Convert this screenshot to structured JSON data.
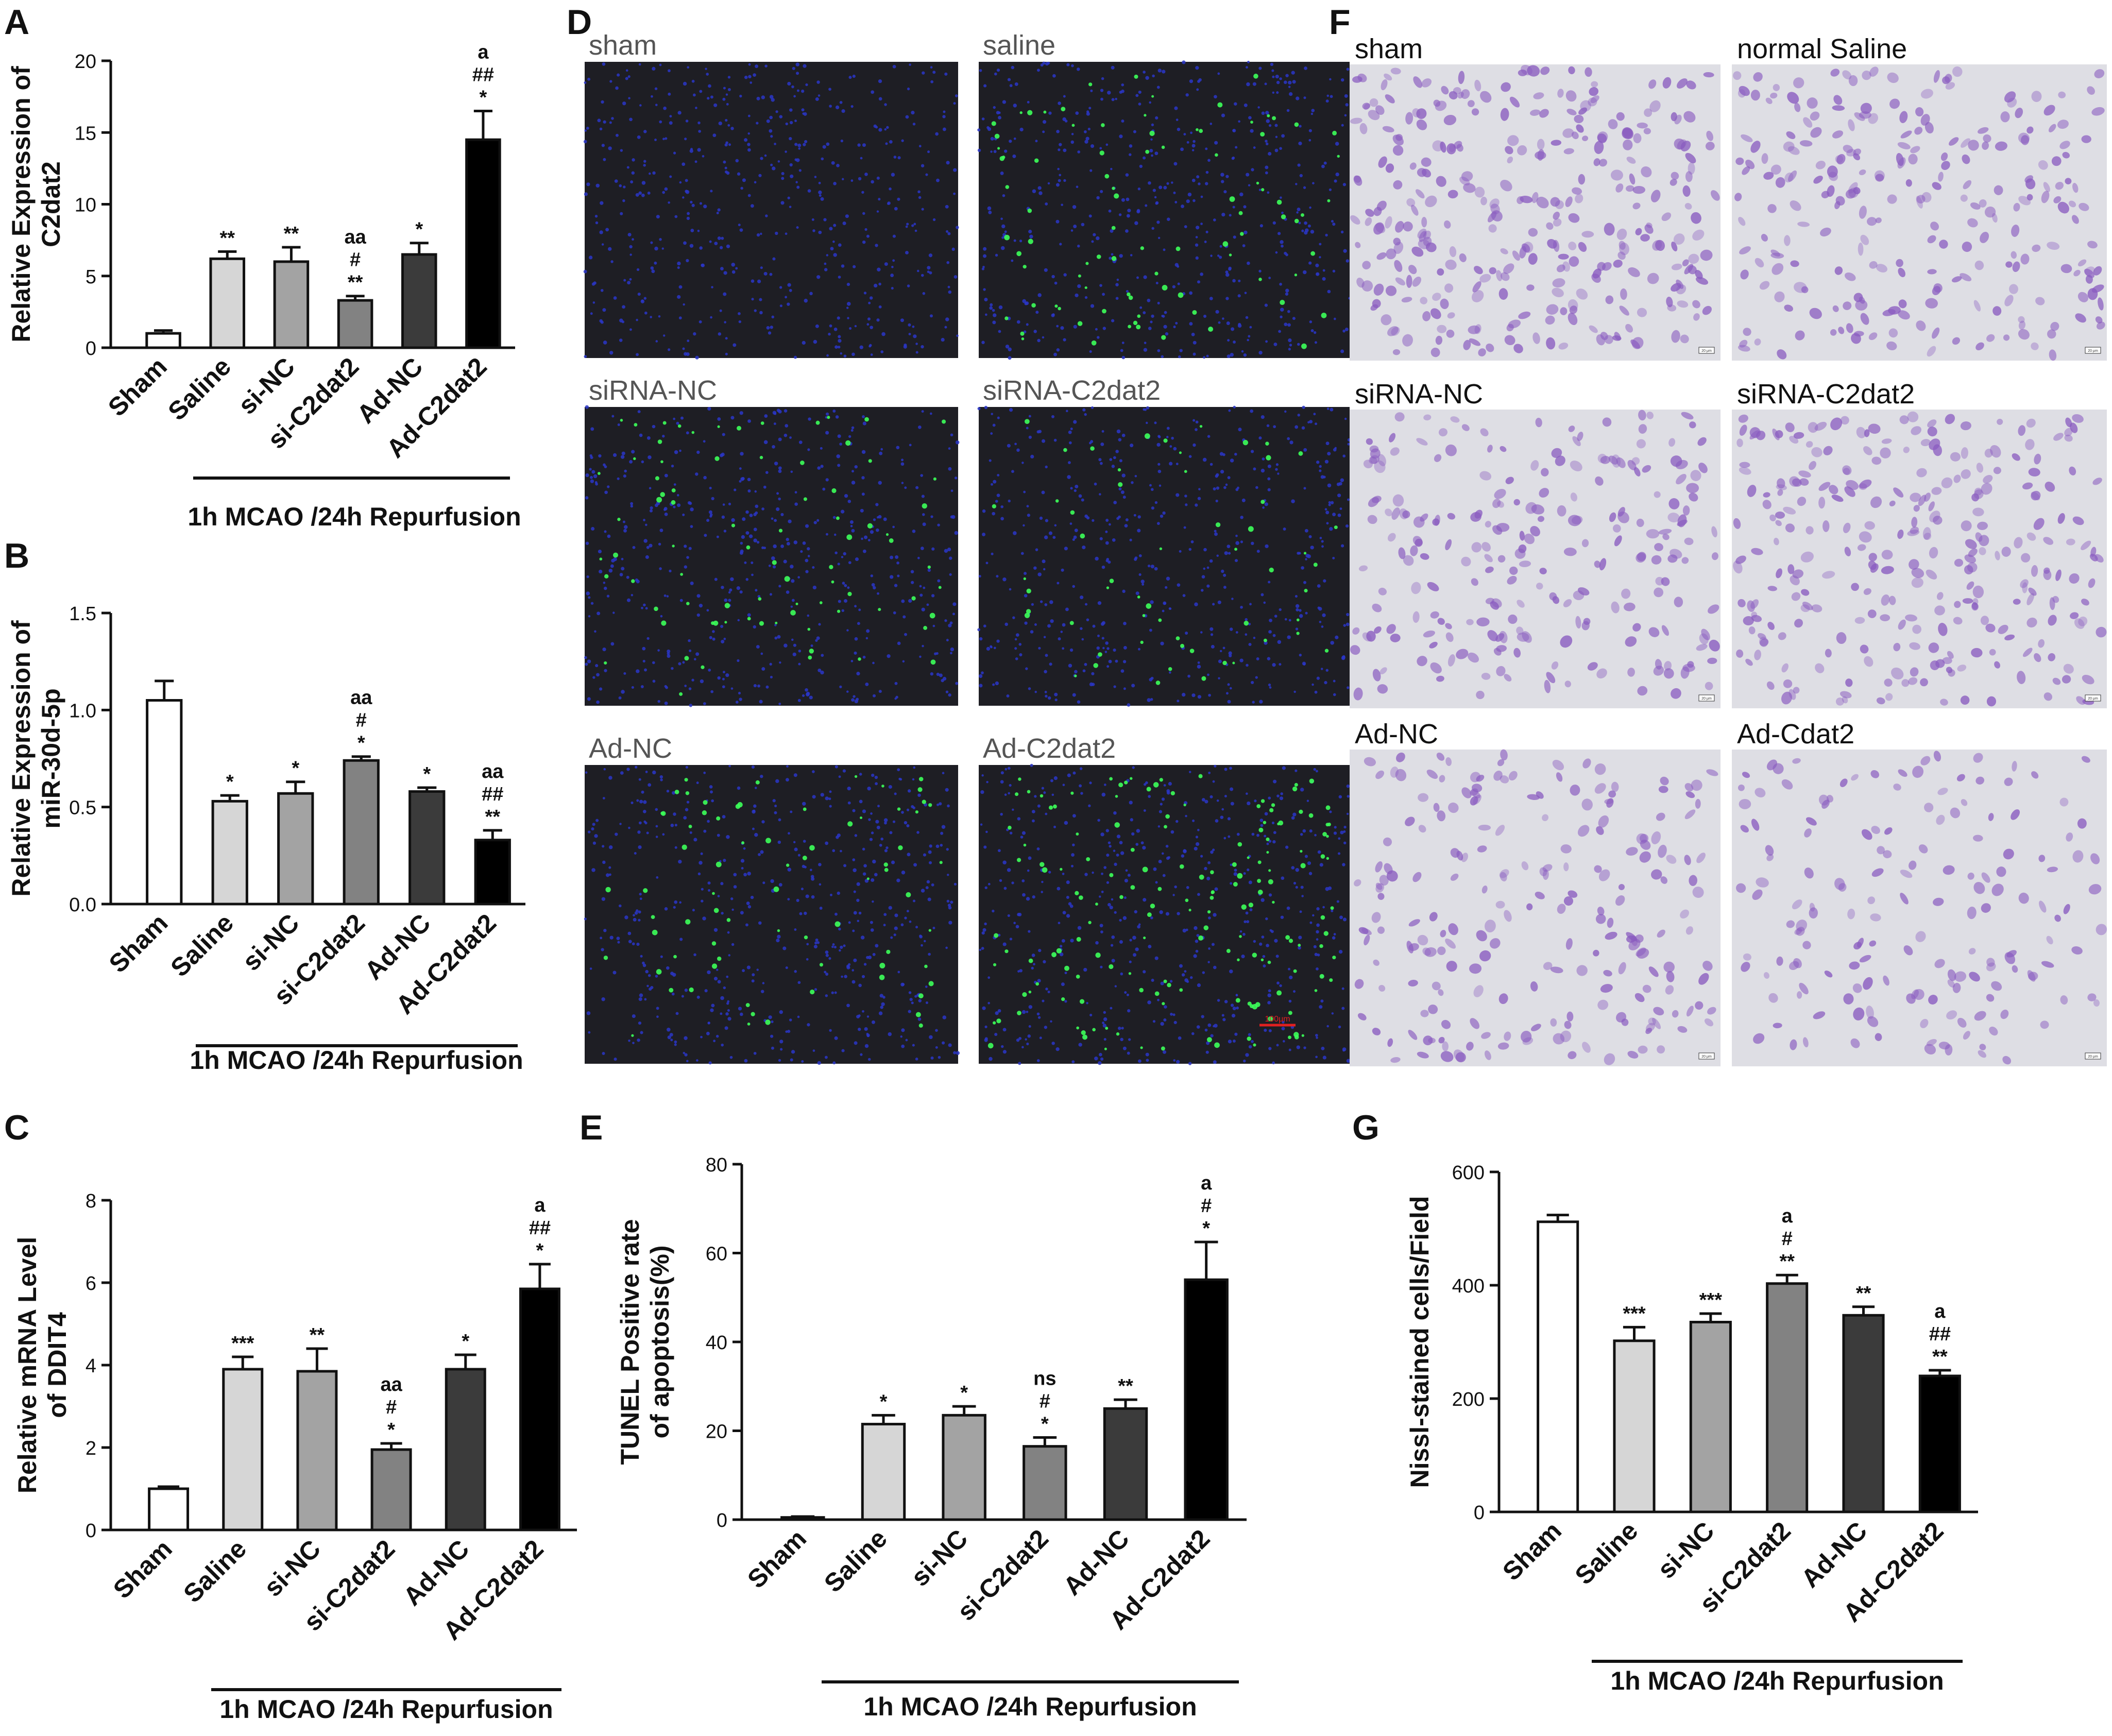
{
  "panel_letters": {
    "A": "A",
    "B": "B",
    "C": "C",
    "D": "D",
    "E": "E",
    "F": "F",
    "G": "G"
  },
  "chart_data": [
    {
      "panel": "A",
      "type": "bar",
      "categories": [
        "Sham",
        "Saline",
        "si-NC",
        "si-C2dat2",
        "Ad-NC",
        "Ad-C2dat2"
      ],
      "values": [
        1.0,
        6.2,
        6.0,
        3.3,
        6.5,
        14.5
      ],
      "errors": [
        0.2,
        0.5,
        1.0,
        0.3,
        0.8,
        2.0
      ],
      "significance": [
        [],
        [
          "**"
        ],
        [
          "**"
        ],
        [
          "aa",
          "#",
          "**"
        ],
        [
          "*"
        ],
        [
          "a",
          "##",
          "*"
        ]
      ],
      "ylabel": [
        "Relative Expression of",
        "C2dat2"
      ],
      "ylim": [
        0,
        20
      ],
      "yticks": [
        0,
        5,
        10,
        15,
        20
      ],
      "ytick_labels": [
        "0",
        "5",
        "10",
        "15",
        "20"
      ],
      "group_label": "1h MCAO /24h Repurfusion",
      "colors": [
        "#ffffff",
        "#d6d6d6",
        "#a3a3a3",
        "#828282",
        "#3b3b3b",
        "#000000"
      ]
    },
    {
      "panel": "B",
      "type": "bar",
      "categories": [
        "Sham",
        "Saline",
        "si-NC",
        "si-C2dat2",
        "Ad-NC",
        "Ad-C2dat2"
      ],
      "values": [
        1.05,
        0.53,
        0.57,
        0.74,
        0.58,
        0.33
      ],
      "errors": [
        0.1,
        0.03,
        0.06,
        0.02,
        0.02,
        0.05
      ],
      "significance": [
        [],
        [
          "*"
        ],
        [
          "*"
        ],
        [
          "aa",
          "#",
          "*"
        ],
        [
          "*"
        ],
        [
          "aa",
          "##",
          "**"
        ]
      ],
      "ylabel": [
        "Relative Expression of",
        "miR-30d-5p"
      ],
      "ylim": [
        0,
        1.5
      ],
      "yticks": [
        0,
        0.5,
        1.0,
        1.5
      ],
      "ytick_labels": [
        "0.0",
        "0.5",
        "1.0",
        "1.5"
      ],
      "group_label": "1h MCAO /24h Repurfusion",
      "colors": [
        "#ffffff",
        "#d6d6d6",
        "#a3a3a3",
        "#828282",
        "#3b3b3b",
        "#000000"
      ]
    },
    {
      "panel": "C",
      "type": "bar",
      "categories": [
        "Sham",
        "Saline",
        "si-NC",
        "si-C2dat2",
        "Ad-NC",
        "Ad-C2dat2"
      ],
      "values": [
        1.0,
        3.9,
        3.85,
        1.95,
        3.9,
        5.85
      ],
      "errors": [
        0.05,
        0.3,
        0.55,
        0.15,
        0.35,
        0.6
      ],
      "significance": [
        [],
        [
          "***"
        ],
        [
          "**"
        ],
        [
          "aa",
          "#",
          "*"
        ],
        [
          "*"
        ],
        [
          "a",
          "##",
          "*"
        ]
      ],
      "ylabel": [
        "Relative mRNA Level",
        "of DDIT4"
      ],
      "ylim": [
        0,
        8
      ],
      "yticks": [
        0,
        2,
        4,
        6,
        8
      ],
      "ytick_labels": [
        "0",
        "2",
        "4",
        "6",
        "8"
      ],
      "group_label": "1h MCAO /24h Repurfusion",
      "colors": [
        "#ffffff",
        "#d6d6d6",
        "#a3a3a3",
        "#828282",
        "#3b3b3b",
        "#000000"
      ]
    },
    {
      "panel": "E",
      "type": "bar",
      "categories": [
        "Sham",
        "Saline",
        "si-NC",
        "si-C2dat2",
        "Ad-NC",
        "Ad-C2dat2"
      ],
      "values": [
        0.5,
        21.5,
        23.5,
        16.5,
        25.0,
        54.0
      ],
      "errors": [
        0.2,
        2.0,
        2.0,
        2.0,
        2.0,
        8.5
      ],
      "significance": [
        [],
        [
          "*"
        ],
        [
          "*"
        ],
        [
          "ns",
          "#",
          "*"
        ],
        [
          "**"
        ],
        [
          "a",
          "#",
          "*"
        ]
      ],
      "ylabel": [
        "TUNEL Positive rate",
        "of apoptosis(%)"
      ],
      "ylim": [
        0,
        80
      ],
      "yticks": [
        0,
        20,
        40,
        60,
        80
      ],
      "ytick_labels": [
        "0",
        "20",
        "40",
        "60",
        "80"
      ],
      "group_label": "1h MCAO /24h Repurfusion",
      "colors": [
        "#ffffff",
        "#d6d6d6",
        "#a3a3a3",
        "#828282",
        "#3b3b3b",
        "#000000"
      ]
    },
    {
      "panel": "G",
      "type": "bar",
      "categories": [
        "Sham",
        "Saline",
        "si-NC",
        "si-C2dat2",
        "Ad-NC",
        "Ad-C2dat2"
      ],
      "values": [
        512,
        302,
        335,
        403,
        347,
        240
      ],
      "errors": [
        12,
        24,
        15,
        15,
        15,
        10
      ],
      "significance": [
        [],
        [
          "***"
        ],
        [
          "***"
        ],
        [
          "a",
          "#",
          "**"
        ],
        [
          "**"
        ],
        [
          "a",
          "##",
          "**"
        ]
      ],
      "ylabel": [
        "Nissl-stained cells/Field"
      ],
      "ylim": [
        0,
        600
      ],
      "yticks": [
        0,
        200,
        400,
        600
      ],
      "ytick_labels": [
        "0",
        "200",
        "400",
        "600"
      ],
      "group_label": "1h MCAO /24h Repurfusion",
      "colors": [
        "#ffffff",
        "#d6d6d6",
        "#a3a3a3",
        "#828282",
        "#3b3b3b",
        "#000000"
      ]
    }
  ],
  "micrographs_D": {
    "labels": [
      "sham",
      "saline",
      "siRNA-NC",
      "siRNA-C2dat2",
      "Ad-NC",
      "Ad-C2dat2"
    ],
    "green_density": [
      0,
      0.55,
      0.5,
      0.35,
      0.45,
      1.0
    ],
    "scale_bar": "100μm",
    "background": "#1e1e24",
    "nucleus_color": "#2a36c8",
    "apoptotic_color": "#3cff5a"
  },
  "micrographs_F": {
    "labels": [
      "sham",
      "normal Saline",
      "siRNA-NC",
      "siRNA-C2dat2",
      "Ad-NC",
      "Ad-Cdat2"
    ],
    "cell_density": [
      0.9,
      0.7,
      0.65,
      0.8,
      0.6,
      0.45
    ],
    "background": "#dedee4",
    "cell_color": "#8a5cc0",
    "scale_bar": "20 μm"
  }
}
